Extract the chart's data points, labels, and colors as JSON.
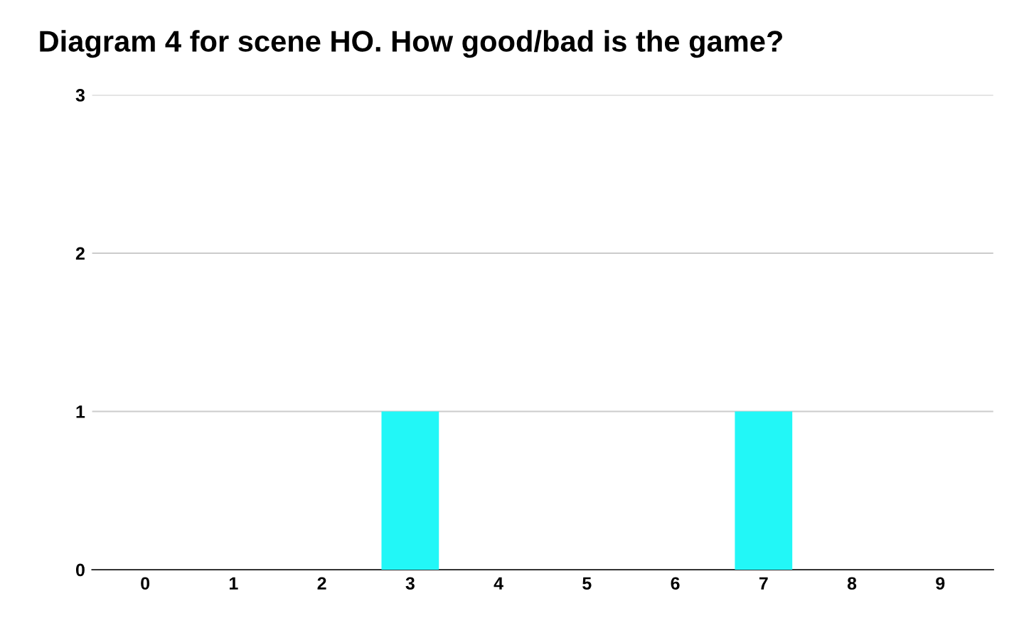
{
  "chart_data": {
    "type": "bar",
    "title": "Diagram 4 for scene HO. How good/bad is the game?",
    "categories": [
      "0",
      "1",
      "2",
      "3",
      "4",
      "5",
      "6",
      "7",
      "8",
      "9"
    ],
    "values": [
      0,
      0,
      0,
      1,
      0,
      0,
      0,
      1,
      0,
      0
    ],
    "color": "#22f7f7",
    "ylim": [
      0,
      3
    ],
    "yticks": [
      0,
      1,
      2,
      3
    ],
    "grid": "y"
  }
}
